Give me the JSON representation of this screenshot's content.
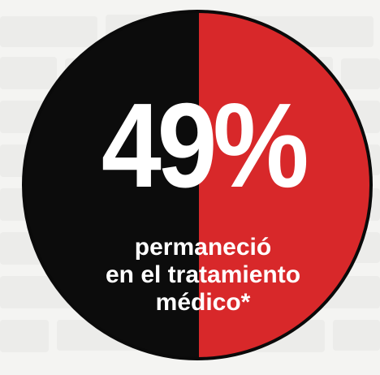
{
  "graphic": {
    "percentage": "49%",
    "value": 49,
    "caption_lines": [
      "permaneció",
      "en el tratamiento",
      "médico*"
    ]
  },
  "colors": {
    "left_half": "#0c0c0c",
    "right_half": "#d8282a",
    "text": "#ffffff",
    "background": "#f3f3f1"
  }
}
